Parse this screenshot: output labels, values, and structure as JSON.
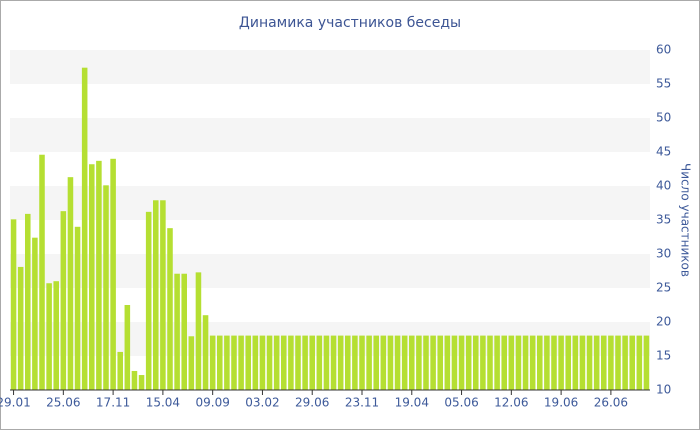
{
  "chart_data": {
    "type": "bar",
    "title": "Динамика участников беседы",
    "y_label": "Число участников",
    "categories": [
      "29.01",
      null,
      null,
      null,
      null,
      null,
      null,
      "25.06",
      null,
      null,
      null,
      null,
      null,
      null,
      "17.11",
      null,
      null,
      null,
      null,
      null,
      null,
      "15.04",
      null,
      null,
      null,
      null,
      null,
      null,
      "09.09",
      null,
      null,
      null,
      null,
      null,
      null,
      "03.02",
      null,
      null,
      null,
      null,
      null,
      null,
      "29.06",
      null,
      null,
      null,
      null,
      null,
      null,
      "23.11",
      null,
      null,
      null,
      null,
      null,
      null,
      "19.04",
      null,
      null,
      null,
      null,
      null,
      null,
      "05.06",
      null,
      null,
      null,
      null,
      null,
      null,
      "12.06",
      null,
      null,
      null,
      null,
      null,
      null,
      "19.06",
      null,
      null,
      null,
      null,
      null,
      null,
      "26.06",
      null,
      null,
      null,
      null,
      null
    ],
    "values": [
      35.1,
      28.1,
      35.9,
      32.4,
      44.6,
      25.7,
      26.0,
      36.3,
      41.3,
      34.0,
      57.4,
      43.2,
      43.7,
      40.1,
      44.0,
      15.6,
      22.5,
      12.8,
      12.2,
      36.2,
      37.9,
      37.9,
      33.8,
      27.1,
      27.1,
      17.9,
      27.3,
      21.0,
      18,
      18,
      18,
      18,
      18,
      18,
      18,
      18,
      18,
      18,
      18,
      18,
      18,
      18,
      18,
      18,
      18,
      18,
      18,
      18,
      18,
      18,
      18,
      18,
      18,
      18,
      18,
      18,
      18,
      18,
      18,
      18,
      18,
      18,
      18,
      18,
      18,
      18,
      18,
      18,
      18,
      18,
      18,
      18,
      18,
      18,
      18,
      18,
      18,
      18,
      18,
      18,
      18,
      18,
      18,
      18,
      18,
      18,
      18,
      18,
      18,
      18
    ],
    "color": "#b5df32",
    "ylim": [
      10,
      60
    ],
    "yticks": [
      10,
      15,
      20,
      25,
      30,
      35,
      40,
      45,
      50,
      55,
      60
    ],
    "grid": "bands",
    "y_axis_side": "right"
  }
}
